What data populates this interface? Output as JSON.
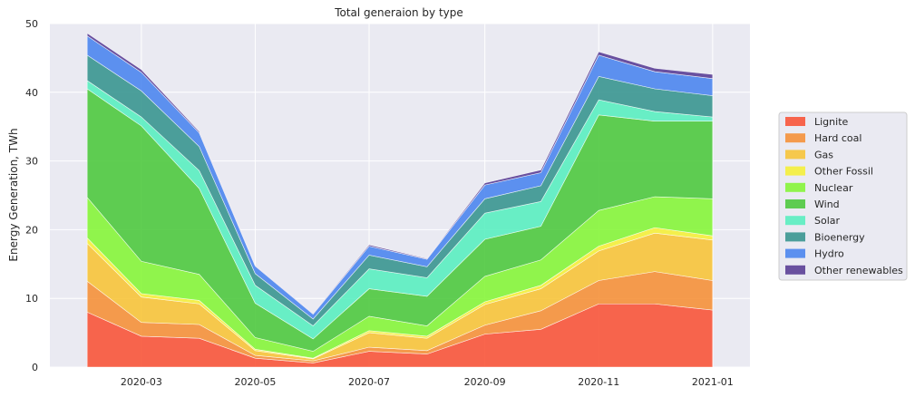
{
  "chart_data": {
    "type": "area",
    "stacked": true,
    "title": "Total generaion by type",
    "ylabel": "Energy Generation, TWh",
    "xlabel": "",
    "ylim": [
      0,
      50
    ],
    "yticks": [
      0,
      10,
      20,
      30,
      40,
      50
    ],
    "x": [
      "2020-02-01",
      "2020-03-01",
      "2020-04-01",
      "2020-05-01",
      "2020-06-01",
      "2020-07-01",
      "2020-08-01",
      "2020-09-01",
      "2020-10-01",
      "2020-11-01",
      "2020-12-01",
      "2021-01-01"
    ],
    "xlim": [
      "2020-01-12",
      "2021-01-21"
    ],
    "xticks": [
      "2020-03-01",
      "2020-05-01",
      "2020-07-01",
      "2020-09-01",
      "2020-11-01",
      "2021-01-01"
    ],
    "xtick_labels": [
      "2020-03",
      "2020-05",
      "2020-07",
      "2020-09",
      "2020-11",
      "2021-01"
    ],
    "grid": true,
    "legend_position": "right",
    "series": [
      {
        "name": "Lignite",
        "color": "#f8553a",
        "values": [
          8.0,
          4.5,
          4.2,
          1.3,
          0.6,
          2.3,
          1.9,
          4.8,
          5.5,
          9.2,
          9.2,
          8.3
        ]
      },
      {
        "name": "Hard coal",
        "color": "#f5913a",
        "values": [
          4.5,
          2.0,
          2.0,
          0.4,
          0.3,
          0.6,
          0.5,
          1.3,
          2.7,
          3.4,
          4.7,
          4.3
        ]
      },
      {
        "name": "Gas",
        "color": "#f7c43a",
        "values": [
          5.5,
          3.7,
          3.0,
          0.7,
          0.3,
          2.1,
          1.8,
          3.0,
          3.2,
          4.3,
          5.6,
          5.9
        ]
      },
      {
        "name": "Other Fossil",
        "color": "#f5f03a",
        "values": [
          0.8,
          0.5,
          0.5,
          0.2,
          0.1,
          0.3,
          0.3,
          0.4,
          0.5,
          0.7,
          0.8,
          0.6
        ]
      },
      {
        "name": "Nuclear",
        "color": "#86f53a",
        "values": [
          5.9,
          4.7,
          3.8,
          1.7,
          1.0,
          2.1,
          1.5,
          3.7,
          3.7,
          5.2,
          4.5,
          5.4
        ]
      },
      {
        "name": "Wind",
        "color": "#4fc93f",
        "values": [
          15.8,
          19.7,
          12.5,
          5.0,
          1.8,
          4.0,
          4.3,
          5.4,
          4.9,
          13.9,
          11.0,
          11.3
        ]
      },
      {
        "name": "Solar",
        "color": "#5aeec0",
        "values": [
          1.2,
          1.3,
          2.6,
          2.6,
          1.9,
          2.9,
          2.7,
          3.8,
          3.6,
          2.2,
          1.4,
          0.6
        ]
      },
      {
        "name": "Bioenergy",
        "color": "#3a9690",
        "values": [
          3.7,
          3.8,
          3.5,
          1.7,
          1.0,
          2.0,
          1.6,
          2.1,
          2.3,
          3.4,
          3.3,
          3.1
        ]
      },
      {
        "name": "Hydro",
        "color": "#4c86ee",
        "values": [
          2.8,
          2.7,
          2.0,
          1.1,
          0.7,
          1.3,
          1.1,
          2.0,
          1.9,
          3.1,
          2.5,
          2.5
        ]
      },
      {
        "name": "Other renewables",
        "color": "#5b3f96",
        "values": [
          0.4,
          0.4,
          0.2,
          0.1,
          0.1,
          0.2,
          0.1,
          0.3,
          0.4,
          0.5,
          0.5,
          0.6
        ]
      }
    ]
  }
}
